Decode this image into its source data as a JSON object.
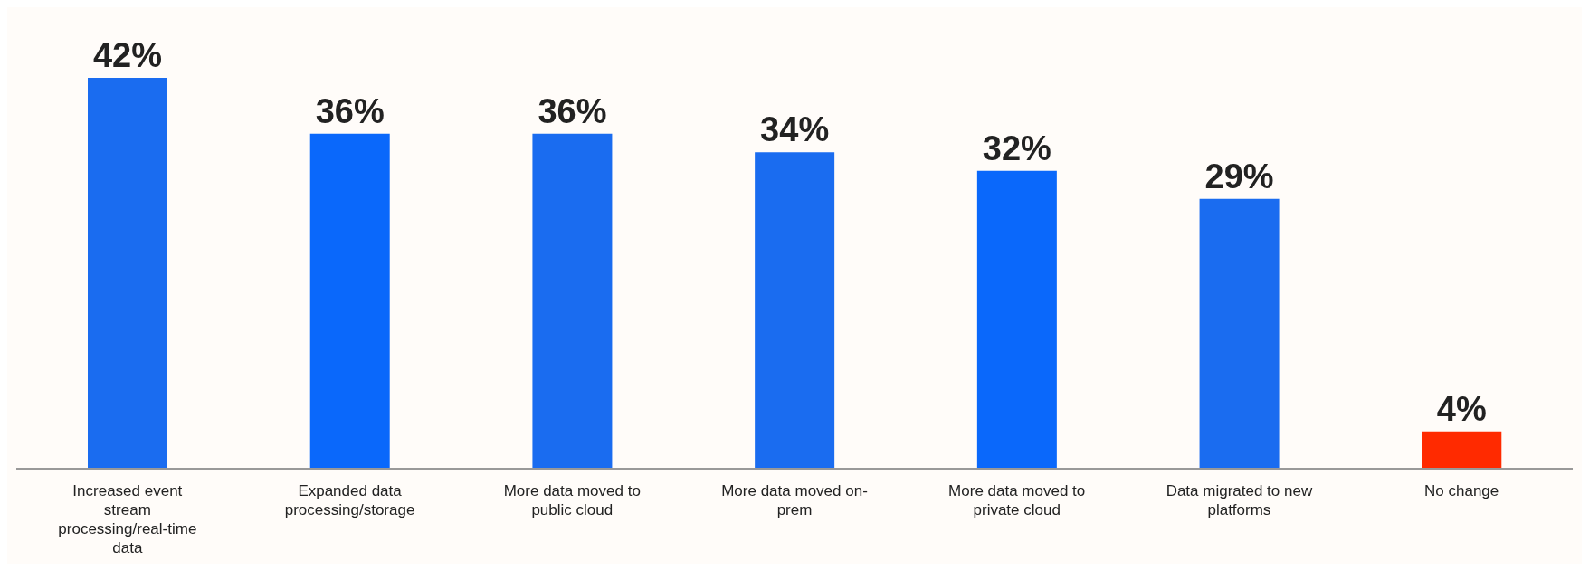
{
  "chart_data": {
    "type": "bar",
    "categories": [
      "Increased event stream processing/real-time data",
      "Expanded data processing/storage",
      "More data moved to public cloud",
      "More data moved on-prem",
      "More data moved to private cloud",
      "Data migrated to new platforms",
      "No change"
    ],
    "values": [
      42,
      36,
      36,
      34,
      32,
      29,
      4
    ],
    "colors": [
      "#1a6cf0",
      "#0a68fb",
      "#1a6cf0",
      "#1a6cf0",
      "#0a68fb",
      "#1a6cf0",
      "#ff2a00"
    ],
    "value_labels": [
      "42%",
      "36%",
      "36%",
      "34%",
      "32%",
      "29%",
      "4%"
    ]
  }
}
